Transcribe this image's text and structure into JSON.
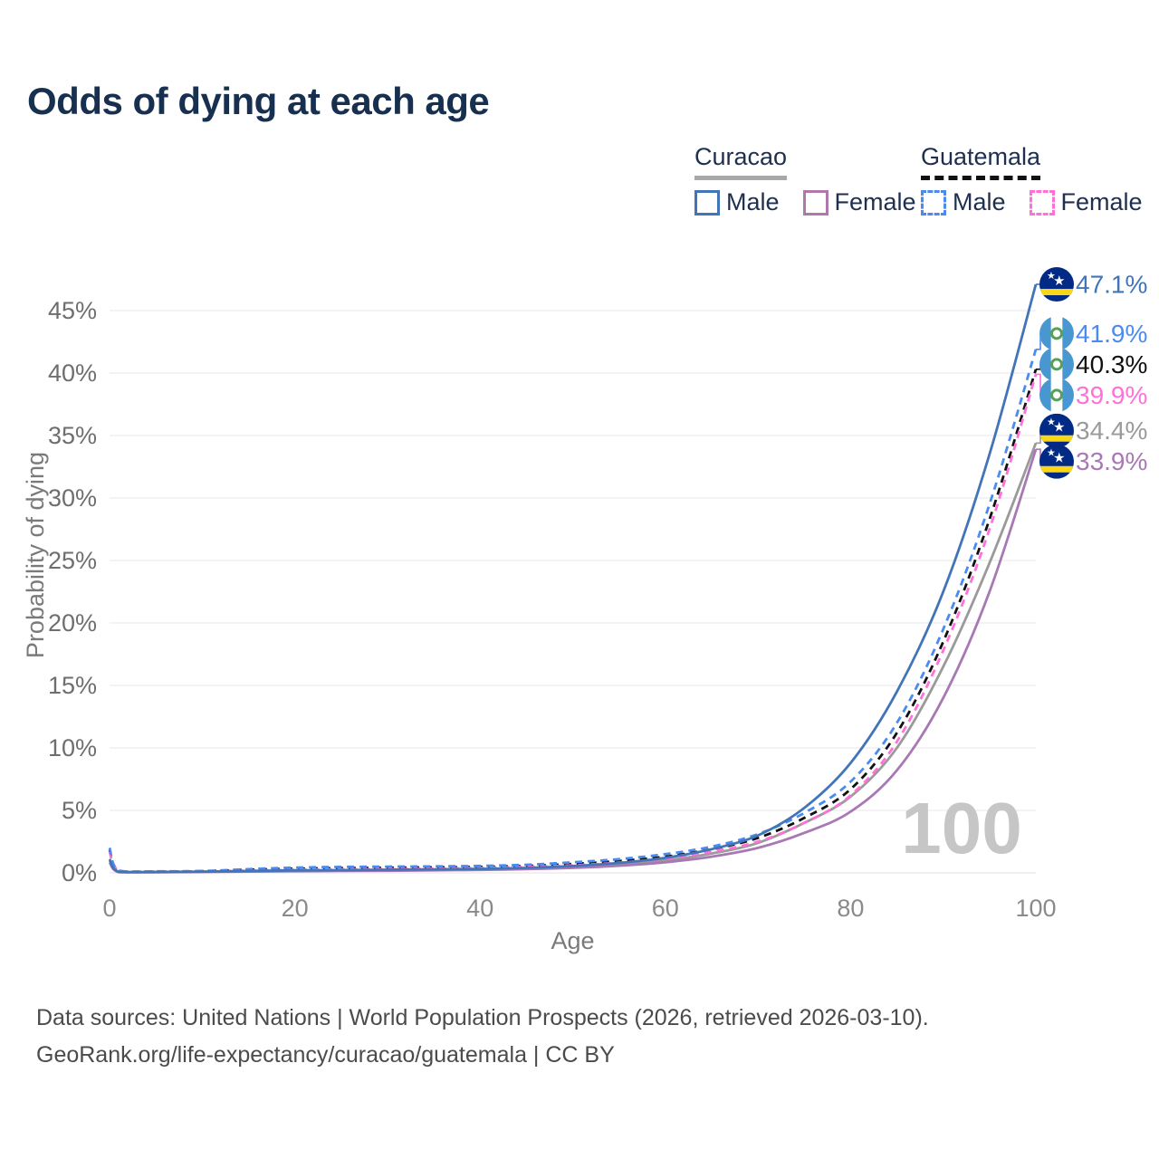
{
  "title": "Odds of dying at each age",
  "legend": {
    "groups": [
      {
        "title": "Curacao",
        "line_style": "solid",
        "underline_color": "#a8a8a8",
        "items": [
          {
            "label": "Male",
            "color": "#4274b8"
          },
          {
            "label": "Female",
            "color": "#b077ad"
          }
        ]
      },
      {
        "title": "Guatemala",
        "line_style": "dashed",
        "underline_color": "#111111",
        "items": [
          {
            "label": "Male",
            "color": "#4b8bf0"
          },
          {
            "label": "Female",
            "color": "#ff70d8"
          }
        ]
      }
    ]
  },
  "chart_data": {
    "type": "line",
    "title": "Odds of dying at each age",
    "xlabel": "Age",
    "ylabel": "Probability of dying",
    "xlim": [
      0,
      100
    ],
    "ylim": [
      0,
      47.5
    ],
    "x_ticks": [
      0,
      20,
      40,
      60,
      80,
      100
    ],
    "y_ticks": [
      0,
      5,
      10,
      15,
      20,
      25,
      30,
      35,
      40,
      45
    ],
    "y_tick_suffix": "%",
    "grid": true,
    "legend_position": "top-right",
    "watermark": "100",
    "x": [
      0,
      1,
      5,
      10,
      15,
      20,
      25,
      30,
      35,
      40,
      45,
      50,
      55,
      60,
      65,
      70,
      75,
      80,
      85,
      90,
      95,
      100
    ],
    "series": [
      {
        "name": "Curacao Total",
        "country": "Curacao",
        "sex": "Total",
        "color": "#9a9a9a",
        "dash": false,
        "flag": "curacao",
        "end_label": "34.4%",
        "end_value": 34.4,
        "values": [
          1.0,
          0.08,
          0.06,
          0.08,
          0.12,
          0.16,
          0.18,
          0.2,
          0.23,
          0.27,
          0.34,
          0.47,
          0.68,
          1.0,
          1.55,
          2.4,
          4.0,
          6.1,
          10.0,
          16.5,
          24.8,
          34.4
        ]
      },
      {
        "name": "Curacao Female",
        "country": "Curacao",
        "sex": "Female",
        "color": "#a878b5",
        "dash": false,
        "flag": "curacao",
        "end_label": "33.9%",
        "end_value": 33.9,
        "values": [
          0.85,
          0.06,
          0.05,
          0.07,
          0.1,
          0.13,
          0.15,
          0.17,
          0.2,
          0.24,
          0.3,
          0.4,
          0.57,
          0.85,
          1.3,
          2.0,
          3.2,
          4.9,
          8.2,
          14.0,
          22.5,
          33.9
        ]
      },
      {
        "name": "Guatemala Total",
        "country": "Guatemala",
        "sex": "Total",
        "color": "#111111",
        "dash": true,
        "flag": "guatemala",
        "end_label": "40.3%",
        "end_value": 40.3,
        "values": [
          1.85,
          0.17,
          0.11,
          0.13,
          0.25,
          0.33,
          0.38,
          0.41,
          0.44,
          0.48,
          0.56,
          0.72,
          0.95,
          1.3,
          1.9,
          2.8,
          4.4,
          6.7,
          11.2,
          18.5,
          28.3,
          40.3
        ]
      },
      {
        "name": "Guatemala Female",
        "country": "Guatemala",
        "sex": "Female",
        "color": "#ff70d8",
        "dash": true,
        "flag": "guatemala",
        "end_label": "39.9%",
        "end_value": 39.9,
        "values": [
          1.7,
          0.15,
          0.1,
          0.11,
          0.18,
          0.25,
          0.28,
          0.3,
          0.34,
          0.4,
          0.48,
          0.6,
          0.82,
          1.15,
          1.7,
          2.5,
          4.0,
          6.2,
          10.5,
          17.8,
          27.5,
          39.9
        ]
      },
      {
        "name": "Guatemala Male",
        "country": "Guatemala",
        "sex": "Male",
        "color": "#4b8bf0",
        "dash": true,
        "flag": "guatemala",
        "end_label": "41.9%",
        "end_value": 41.9,
        "values": [
          2.0,
          0.18,
          0.12,
          0.15,
          0.3,
          0.42,
          0.48,
          0.5,
          0.52,
          0.56,
          0.65,
          0.85,
          1.1,
          1.5,
          2.1,
          3.1,
          4.8,
          7.3,
          12.0,
          19.5,
          29.5,
          41.9
        ]
      },
      {
        "name": "Curacao Male",
        "country": "Curacao",
        "sex": "Male",
        "color": "#4274b8",
        "dash": false,
        "flag": "curacao",
        "end_label": "47.1%",
        "end_value": 47.1,
        "values": [
          1.1,
          0.09,
          0.07,
          0.1,
          0.15,
          0.2,
          0.22,
          0.25,
          0.28,
          0.32,
          0.4,
          0.55,
          0.8,
          1.2,
          1.9,
          3.0,
          5.2,
          8.8,
          14.5,
          22.5,
          33.5,
          47.1
        ]
      }
    ],
    "flags": {
      "curacao": {
        "base": "#012a87",
        "stripe": "#f9d616",
        "star": "#ffffff"
      },
      "guatemala": {
        "stripe": "#4997d0",
        "field": "#ffffff",
        "emblem": "#57a05a"
      }
    },
    "colors": {
      "grid": "#ececec",
      "axis_text": "#6e6e6e",
      "watermark": "#c6c6c6"
    }
  },
  "footer": {
    "line1": "Data sources: United Nations | World Population Prospects (2026, retrieved 2026-03-10).",
    "line2": "GeoRank.org/life-expectancy/curacao/guatemala | CC BY"
  }
}
